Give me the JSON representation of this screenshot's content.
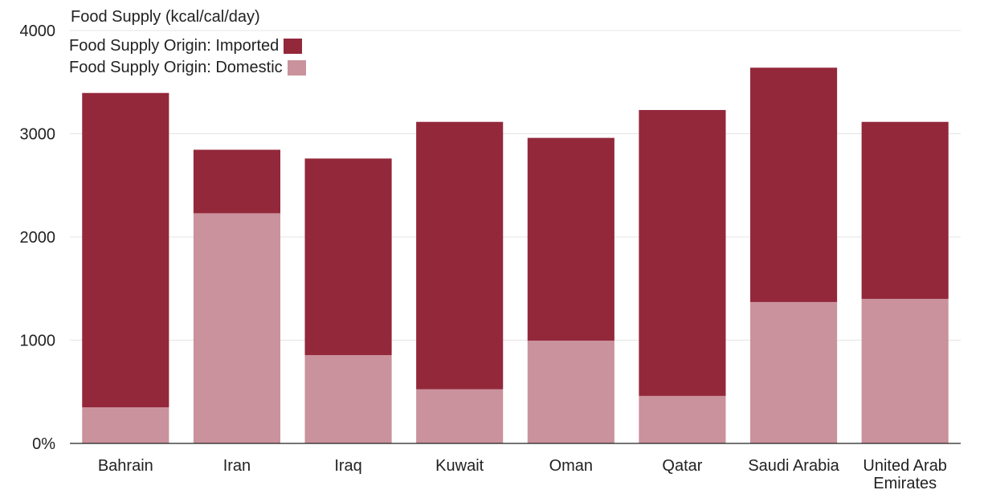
{
  "chart_data": {
    "type": "bar",
    "stacked": true,
    "title": "",
    "ylabel": "Food Supply (kcal/cal/day)",
    "xlabel": "",
    "ylim": [
      0,
      4000
    ],
    "yticks": [
      {
        "value": 0,
        "label": "0%"
      },
      {
        "value": 1000,
        "label": "1000"
      },
      {
        "value": 2000,
        "label": "2000"
      },
      {
        "value": 3000,
        "label": "3000"
      },
      {
        "value": 4000,
        "label": "4000"
      }
    ],
    "grid": true,
    "legend_position": "top-left",
    "categories": [
      "Bahrain",
      "Iran",
      "Iraq",
      "Kuwait",
      "Oman",
      "Qatar",
      "Saudi Arabia",
      "United Arab Emirates"
    ],
    "category_lines": [
      [
        "Bahrain"
      ],
      [
        "Iran"
      ],
      [
        "Iraq"
      ],
      [
        "Kuwait"
      ],
      [
        "Oman"
      ],
      [
        "Qatar"
      ],
      [
        "Saudi Arabia"
      ],
      [
        "United Arab",
        "Emirates"
      ]
    ],
    "series": [
      {
        "name": "Food Supply Origin: Domestic",
        "color": "#ca929c",
        "values": [
          350,
          2230,
          855,
          525,
          995,
          460,
          1370,
          1400
        ]
      },
      {
        "name": "Food Supply Origin: Imported",
        "color": "#93283b",
        "values": [
          3045,
          615,
          1905,
          2590,
          1965,
          2770,
          2270,
          1715
        ]
      }
    ],
    "legend_order": [
      1,
      0
    ]
  }
}
